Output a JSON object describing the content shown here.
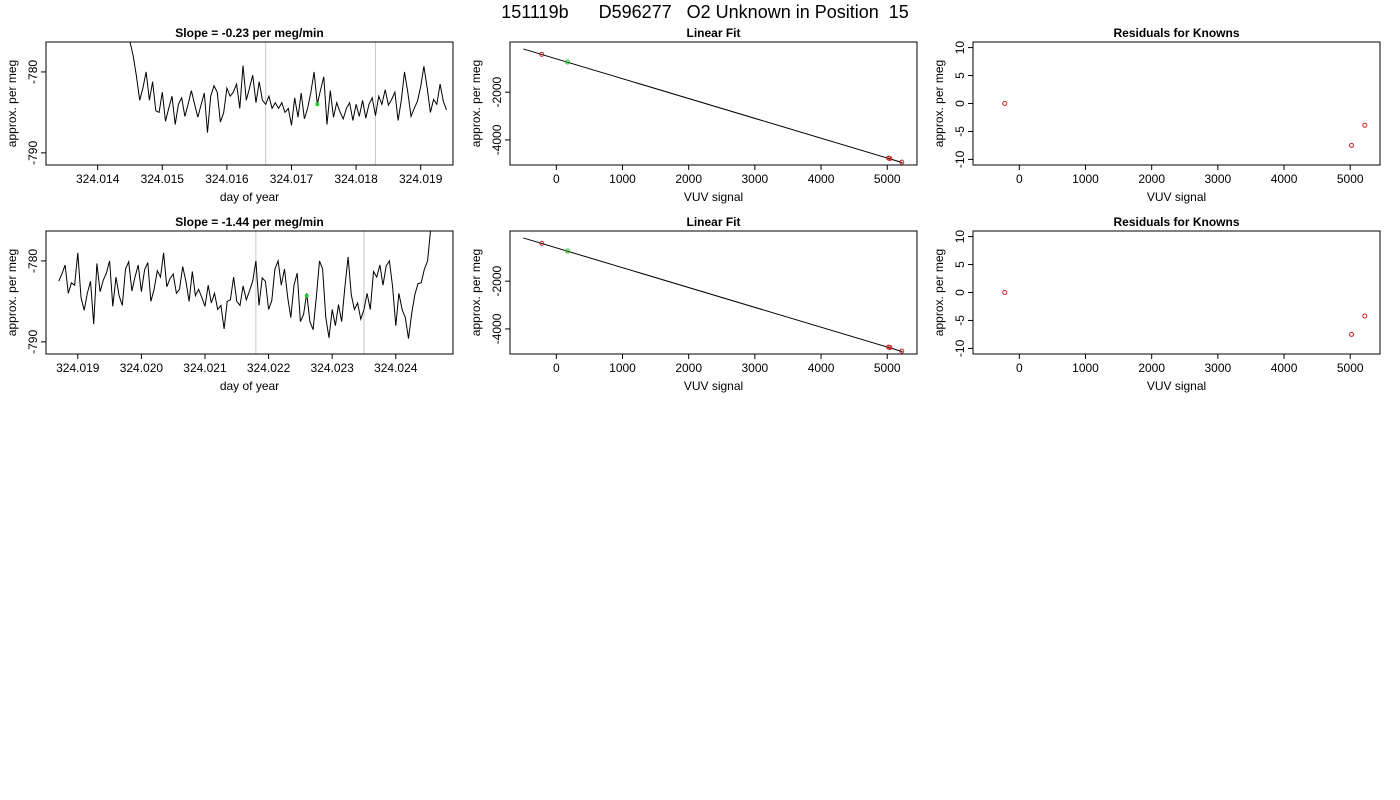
{
  "page": {
    "title": "151119b      D596277   O2 Unknown in Position  15"
  },
  "chart_data": [
    {
      "type": "line",
      "title": "Slope =  -0.23  per meg/min",
      "xlabel": "day of year",
      "ylabel": "approx. per meg",
      "xlim": [
        324.0132,
        324.0195
      ],
      "ylim": [
        -791.5,
        -776.3
      ],
      "xticks": [
        "324.014",
        "324.015",
        "324.016",
        "324.017",
        "324.018",
        "324.019"
      ],
      "xtick_values": [
        324.014,
        324.015,
        324.016,
        324.017,
        324.018,
        324.019
      ],
      "yticks": [
        "-780",
        "-790"
      ],
      "ytick_values": [
        -780,
        -790
      ],
      "vlines": [
        324.0166,
        324.0183
      ],
      "marker": {
        "x": 324.0174,
        "y": -784.0,
        "color": "#22cc22"
      },
      "series": [
        {
          "x": [
            324.0145,
            324.01455,
            324.0146,
            324.01465,
            324.0147,
            324.01475,
            324.0148,
            324.01485,
            324.0149,
            324.01495,
            324.015,
            324.01505,
            324.0151,
            324.01515,
            324.0152,
            324.01525,
            324.0153,
            324.01535,
            324.0154,
            324.01545,
            324.0155,
            324.01555,
            324.0156,
            324.01565,
            324.0157,
            324.01575,
            324.0158,
            324.01585,
            324.0159,
            324.01595,
            324.016,
            324.01605,
            324.0161,
            324.01615,
            324.0162,
            324.01625,
            324.0163,
            324.01635,
            324.0164,
            324.01645,
            324.0165,
            324.01655,
            324.0166,
            324.01665,
            324.0167,
            324.01675,
            324.0168,
            324.01685,
            324.0169,
            324.01695,
            324.017,
            324.01705,
            324.0171,
            324.01715,
            324.0172,
            324.01725,
            324.0173,
            324.01735,
            324.0174,
            324.01745,
            324.0175,
            324.01755,
            324.0176,
            324.01765,
            324.0177,
            324.01775,
            324.0178,
            324.01785,
            324.0179,
            324.01795,
            324.018,
            324.01805,
            324.0181,
            324.01815,
            324.0182,
            324.01825,
            324.0183,
            324.01835,
            324.0184,
            324.01845,
            324.0185,
            324.01855,
            324.0186,
            324.01865,
            324.0187,
            324.01875,
            324.0188,
            324.01885,
            324.0189,
            324.01895,
            324.019,
            324.01905,
            324.0191,
            324.01915,
            324.0192,
            324.01925,
            324.0193,
            324.01935,
            324.0194
          ],
          "y": [
            -776.3,
            -778.0,
            -780.5,
            -783.5,
            -782.0,
            -780.0,
            -783.5,
            -781.2,
            -784.8,
            -785.0,
            -782.5,
            -786.1,
            -784.5,
            -783.0,
            -786.5,
            -784.0,
            -783.2,
            -785.5,
            -784.0,
            -782.3,
            -784.0,
            -785.6,
            -784.1,
            -782.6,
            -787.5,
            -783.0,
            -781.7,
            -782.5,
            -786.2,
            -785.0,
            -782.0,
            -783.0,
            -782.5,
            -781.5,
            -784.5,
            -779.2,
            -783.5,
            -782.0,
            -780.4,
            -783.8,
            -781.2,
            -783.5,
            -784.0,
            -783.0,
            -784.5,
            -783.8,
            -784.5,
            -783.8,
            -785.0,
            -784.5,
            -786.6,
            -783.2,
            -785.6,
            -782.6,
            -785.8,
            -784.5,
            -782.5,
            -780.0,
            -784.0,
            -782.2,
            -780.6,
            -786.5,
            -782.3,
            -785.6,
            -783.8,
            -784.9,
            -785.8,
            -784.5,
            -783.8,
            -786.0,
            -784.0,
            -785.5,
            -783.5,
            -785.7,
            -784.0,
            -783.2,
            -785.4,
            -783.0,
            -784.0,
            -782.2,
            -784.1,
            -783.4,
            -782.5,
            -786.0,
            -783.5,
            -780.0,
            -782.5,
            -785.5,
            -784.5,
            -783.6,
            -781.8,
            -779.3,
            -782.0,
            -785.0,
            -783.4,
            -784.0,
            -781.5,
            -783.6,
            -784.7
          ]
        }
      ]
    },
    {
      "type": "scatter",
      "title": "Linear Fit",
      "xlabel": "VUV signal",
      "ylabel": "approx. per meg",
      "xlim": [
        -700,
        5450
      ],
      "ylim": [
        -5050,
        100
      ],
      "xticks": [
        "0",
        "1000",
        "2000",
        "3000",
        "4000",
        "5000"
      ],
      "xtick_values": [
        0,
        1000,
        2000,
        3000,
        4000,
        5000
      ],
      "yticks": [
        "-2000",
        "-4000"
      ],
      "ytick_values": [
        -2000,
        -4000
      ],
      "fit_line": {
        "x": [
          -500,
          5230
        ],
        "y": [
          -190,
          -4950
        ]
      },
      "points": [
        {
          "x": -220,
          "y": -420,
          "color": "#cc2222"
        },
        {
          "x": 170,
          "y": -740,
          "color": "#22cc22"
        },
        {
          "x": 5020,
          "y": -4760,
          "color": "#cc2222"
        },
        {
          "x": 5040,
          "y": -4780,
          "color": "#cc2222"
        },
        {
          "x": 5220,
          "y": -4930,
          "color": "#cc2222"
        }
      ]
    },
    {
      "type": "scatter",
      "title": "Residuals for Knowns",
      "xlabel": "VUV signal",
      "ylabel": "approx. per meg",
      "xlim": [
        -700,
        5450
      ],
      "ylim": [
        -11,
        11
      ],
      "xticks": [
        "0",
        "1000",
        "2000",
        "3000",
        "4000",
        "5000"
      ],
      "xtick_values": [
        0,
        1000,
        2000,
        3000,
        4000,
        5000
      ],
      "yticks": [
        "10",
        "5",
        "0",
        "-5",
        "-10"
      ],
      "ytick_values": [
        10,
        5,
        0,
        -5,
        -10
      ],
      "points": [
        {
          "x": -220,
          "y": 0.0,
          "color": "#cc2222"
        },
        {
          "x": 5020,
          "y": -7.5,
          "color": "#cc2222"
        },
        {
          "x": 5220,
          "y": -3.9,
          "color": "#cc2222"
        }
      ]
    },
    {
      "type": "line",
      "title": "Slope =  -1.44  per meg/min",
      "xlabel": "day of year",
      "ylabel": "approx. per meg",
      "xlim": [
        324.0185,
        324.0249
      ],
      "ylim": [
        -791.5,
        -776.3
      ],
      "xticks": [
        "324.019",
        "324.020",
        "324.021",
        "324.022",
        "324.023",
        "324.024"
      ],
      "xtick_values": [
        324.019,
        324.02,
        324.021,
        324.022,
        324.023,
        324.024
      ],
      "yticks": [
        "-780",
        "-790"
      ],
      "ytick_values": [
        -780,
        -790
      ],
      "vlines": [
        324.0218,
        324.0235
      ],
      "marker": {
        "x": 324.0226,
        "y": -784.3,
        "color": "#22cc22"
      },
      "series": [
        {
          "x": [
            324.0187,
            324.01875,
            324.0188,
            324.01885,
            324.0189,
            324.01895,
            324.019,
            324.01905,
            324.0191,
            324.01915,
            324.0192,
            324.01925,
            324.0193,
            324.01935,
            324.0194,
            324.01945,
            324.0195,
            324.01955,
            324.0196,
            324.01965,
            324.0197,
            324.01975,
            324.0198,
            324.01985,
            324.0199,
            324.01995,
            324.02,
            324.02005,
            324.0201,
            324.02015,
            324.0202,
            324.02025,
            324.0203,
            324.02035,
            324.0204,
            324.02045,
            324.0205,
            324.02055,
            324.0206,
            324.02065,
            324.0207,
            324.02075,
            324.0208,
            324.02085,
            324.0209,
            324.02095,
            324.021,
            324.02105,
            324.0211,
            324.02115,
            324.0212,
            324.02125,
            324.0213,
            324.02135,
            324.0214,
            324.02145,
            324.0215,
            324.02155,
            324.0216,
            324.02165,
            324.0217,
            324.02175,
            324.0218,
            324.02185,
            324.0219,
            324.02195,
            324.022,
            324.02205,
            324.0221,
            324.02215,
            324.0222,
            324.02225,
            324.0223,
            324.02235,
            324.0224,
            324.02245,
            324.0225,
            324.02255,
            324.0226,
            324.02265,
            324.0227,
            324.02275,
            324.0228,
            324.02285,
            324.0229,
            324.02295,
            324.023,
            324.02305,
            324.0231,
            324.02315,
            324.0232,
            324.02325,
            324.0233,
            324.02335,
            324.0234,
            324.02345,
            324.0235,
            324.02355,
            324.0236,
            324.02365,
            324.0237,
            324.02375,
            324.0238,
            324.02385,
            324.0239,
            324.02395,
            324.024,
            324.02405,
            324.0241,
            324.02415,
            324.0242,
            324.02425,
            324.0243,
            324.02435,
            324.0244,
            324.02445,
            324.0245,
            324.02455,
            324.0246
          ],
          "y": [
            -782.5,
            -781.6,
            -780.5,
            -784.0,
            -782.7,
            -783.0,
            -779.0,
            -784.5,
            -786.1,
            -784.0,
            -782.5,
            -787.8,
            -780.3,
            -783.8,
            -782.4,
            -781.5,
            -780.0,
            -785.6,
            -782.0,
            -784.3,
            -785.5,
            -781.0,
            -780.1,
            -783.7,
            -782.0,
            -780.5,
            -783.8,
            -781.1,
            -780.2,
            -785.0,
            -783.5,
            -781.2,
            -782.0,
            -779.0,
            -783.2,
            -782.2,
            -781.6,
            -784.0,
            -783.5,
            -780.7,
            -782.5,
            -785.0,
            -781.3,
            -784.3,
            -783.5,
            -784.5,
            -785.6,
            -783.0,
            -785.2,
            -784.0,
            -786.0,
            -785.5,
            -788.4,
            -785.0,
            -784.8,
            -782.0,
            -785.0,
            -785.5,
            -783.1,
            -784.8,
            -783.7,
            -782.5,
            -780.0,
            -785.5,
            -782.1,
            -782.5,
            -786.0,
            -784.9,
            -781.0,
            -780.0,
            -783.0,
            -781.0,
            -784.5,
            -787.0,
            -783.0,
            -781.5,
            -787.5,
            -786.6,
            -784.0,
            -787.5,
            -788.5,
            -784.5,
            -780.0,
            -781.0,
            -787.0,
            -789.5,
            -786.0,
            -788.0,
            -785.4,
            -787.5,
            -783.2,
            -779.5,
            -784.2,
            -786.0,
            -785.2,
            -787.2,
            -786.0,
            -784.0,
            -786.0,
            -781.3,
            -782.0,
            -780.5,
            -783.0,
            -780.6,
            -780.0,
            -783.2,
            -788.0,
            -784.0,
            -786.0,
            -787.0,
            -789.6,
            -786.5,
            -784.2,
            -782.8,
            -782.7,
            -781.0,
            -780.0,
            -776.0,
            -771.0
          ]
        }
      ]
    },
    {
      "type": "scatter",
      "title": "Linear Fit",
      "xlabel": "VUV signal",
      "ylabel": "approx. per meg",
      "xlim": [
        -700,
        5450
      ],
      "ylim": [
        -5050,
        100
      ],
      "xticks": [
        "0",
        "1000",
        "2000",
        "3000",
        "4000",
        "5000"
      ],
      "xtick_values": [
        0,
        1000,
        2000,
        3000,
        4000,
        5000
      ],
      "yticks": [
        "-2000",
        "-4000"
      ],
      "ytick_values": [
        -2000,
        -4000
      ],
      "fit_line": {
        "x": [
          -500,
          5230
        ],
        "y": [
          -190,
          -4950
        ]
      },
      "points": [
        {
          "x": -220,
          "y": -420,
          "color": "#cc2222"
        },
        {
          "x": 170,
          "y": -740,
          "color": "#22cc22"
        },
        {
          "x": 5020,
          "y": -4760,
          "color": "#cc2222"
        },
        {
          "x": 5040,
          "y": -4780,
          "color": "#cc2222"
        },
        {
          "x": 5220,
          "y": -4930,
          "color": "#cc2222"
        }
      ]
    },
    {
      "type": "scatter",
      "title": "Residuals for Knowns",
      "xlabel": "VUV signal",
      "ylabel": "approx. per meg",
      "xlim": [
        -700,
        5450
      ],
      "ylim": [
        -11,
        11
      ],
      "xticks": [
        "0",
        "1000",
        "2000",
        "3000",
        "4000",
        "5000"
      ],
      "xtick_values": [
        0,
        1000,
        2000,
        3000,
        4000,
        5000
      ],
      "yticks": [
        "10",
        "5",
        "0",
        "-5",
        "-10"
      ],
      "ytick_values": [
        10,
        5,
        0,
        -5,
        -10
      ],
      "points": [
        {
          "x": -220,
          "y": 0.0,
          "color": "#cc2222"
        },
        {
          "x": 5020,
          "y": -7.5,
          "color": "#cc2222"
        },
        {
          "x": 5220,
          "y": -4.2,
          "color": "#cc2222"
        }
      ]
    }
  ]
}
